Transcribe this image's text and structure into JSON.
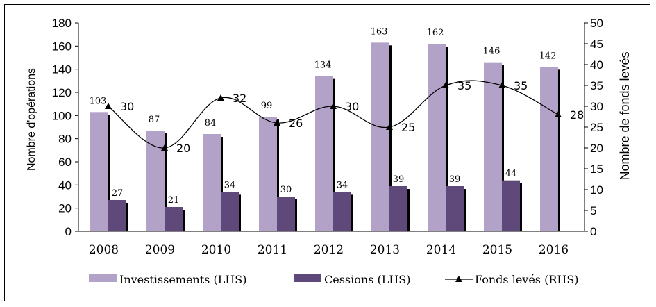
{
  "chart_data": {
    "type": "bar",
    "categories": [
      "2008",
      "2009",
      "2010",
      "2011",
      "2012",
      "2013",
      "2014",
      "2015",
      "2016"
    ],
    "series": [
      {
        "name": "Investissements (LHS)",
        "type": "bar",
        "axis": "left",
        "color": "#b3a2c7",
        "values": [
          103,
          87,
          84,
          99,
          134,
          163,
          162,
          146,
          142
        ]
      },
      {
        "name": "Cessions (LHS)",
        "type": "bar",
        "axis": "left",
        "color": "#5f497a",
        "values": [
          27,
          21,
          34,
          30,
          34,
          39,
          39,
          44,
          null
        ]
      },
      {
        "name": "Fonds levés (RHS)",
        "type": "line",
        "axis": "right",
        "color": "#000000",
        "marker": "triangle",
        "values": [
          30,
          20,
          32,
          26,
          30,
          25,
          35,
          35,
          28
        ]
      }
    ],
    "ylabel": "Nombre  d'opérations",
    "y2label": "Nombre de fonds levés",
    "ylim": [
      0,
      180
    ],
    "y2lim": [
      0,
      50
    ],
    "yticks": [
      "0",
      "20",
      "40",
      "60",
      "80",
      "100",
      "120",
      "140",
      "160",
      "180"
    ],
    "y2ticks": [
      "0",
      "5",
      "10",
      "15",
      "20",
      "25",
      "30",
      "35",
      "40",
      "45",
      "50"
    ],
    "legend_position": "bottom"
  }
}
